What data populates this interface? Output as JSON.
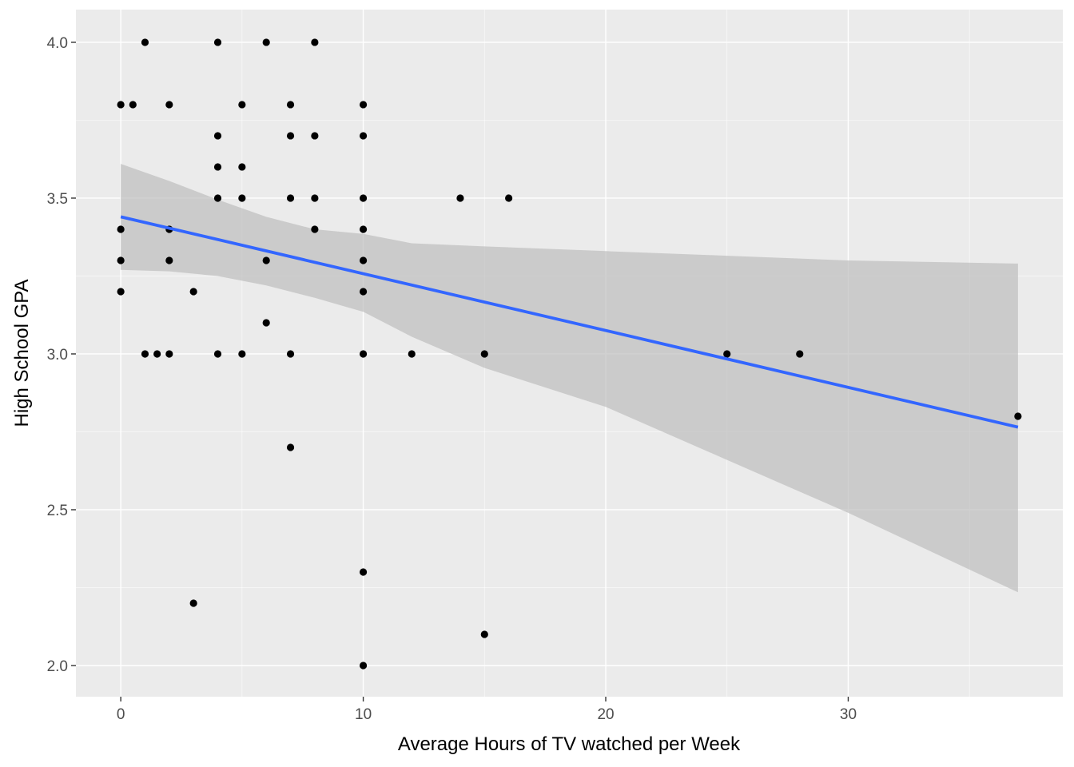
{
  "chart_data": {
    "type": "scatter",
    "xlabel": "Average Hours of TV watched per Week",
    "ylabel": "High School GPA",
    "xlim": [
      -1.85,
      38.85
    ],
    "ylim": [
      1.9,
      4.105
    ],
    "x_ticks": [
      0,
      10,
      20,
      30
    ],
    "x_tick_labels": [
      "0",
      "10",
      "20",
      "30"
    ],
    "y_ticks": [
      2.0,
      2.5,
      3.0,
      3.5,
      4.0
    ],
    "y_tick_labels": [
      "2.0",
      "2.5",
      "3.0",
      "3.5",
      "4.0"
    ],
    "grid": true,
    "legend": "none",
    "points": [
      {
        "x": 0,
        "y": 3.8
      },
      {
        "x": 0,
        "y": 3.4
      },
      {
        "x": 0,
        "y": 3.3
      },
      {
        "x": 0,
        "y": 3.2
      },
      {
        "x": 0.5,
        "y": 3.8
      },
      {
        "x": 1,
        "y": 4.0
      },
      {
        "x": 1,
        "y": 3.0
      },
      {
        "x": 1.5,
        "y": 3.0
      },
      {
        "x": 2,
        "y": 3.8
      },
      {
        "x": 2,
        "y": 3.4
      },
      {
        "x": 2,
        "y": 3.3
      },
      {
        "x": 2,
        "y": 3.0
      },
      {
        "x": 3,
        "y": 3.2
      },
      {
        "x": 3,
        "y": 2.2
      },
      {
        "x": 4,
        "y": 4.0
      },
      {
        "x": 4,
        "y": 3.7
      },
      {
        "x": 4,
        "y": 3.6
      },
      {
        "x": 4,
        "y": 3.5
      },
      {
        "x": 4,
        "y": 3.0
      },
      {
        "x": 5,
        "y": 3.8
      },
      {
        "x": 5,
        "y": 3.6
      },
      {
        "x": 5,
        "y": 3.5
      },
      {
        "x": 5,
        "y": 3.0
      },
      {
        "x": 6,
        "y": 4.0
      },
      {
        "x": 6,
        "y": 3.3
      },
      {
        "x": 6,
        "y": 3.1
      },
      {
        "x": 7,
        "y": 3.8
      },
      {
        "x": 7,
        "y": 3.7
      },
      {
        "x": 7,
        "y": 3.5
      },
      {
        "x": 7,
        "y": 3.0
      },
      {
        "x": 7,
        "y": 2.7
      },
      {
        "x": 8,
        "y": 4.0
      },
      {
        "x": 8,
        "y": 3.7
      },
      {
        "x": 8,
        "y": 3.5
      },
      {
        "x": 8,
        "y": 3.4
      },
      {
        "x": 10,
        "y": 3.8
      },
      {
        "x": 10,
        "y": 3.7
      },
      {
        "x": 10,
        "y": 3.5
      },
      {
        "x": 10,
        "y": 3.4
      },
      {
        "x": 10,
        "y": 3.3
      },
      {
        "x": 10,
        "y": 3.2
      },
      {
        "x": 10,
        "y": 3.0
      },
      {
        "x": 10,
        "y": 2.3
      },
      {
        "x": 10,
        "y": 2.0
      },
      {
        "x": 12,
        "y": 3.0
      },
      {
        "x": 14,
        "y": 3.5
      },
      {
        "x": 15,
        "y": 3.0
      },
      {
        "x": 15,
        "y": 2.1
      },
      {
        "x": 16,
        "y": 3.5
      },
      {
        "x": 25,
        "y": 3.0
      },
      {
        "x": 28,
        "y": 3.0
      },
      {
        "x": 37,
        "y": 2.8
      }
    ],
    "fit_line": {
      "x": [
        0,
        37
      ],
      "y": [
        3.44,
        2.765
      ]
    },
    "confidence_band": [
      {
        "x": 0,
        "lower": 3.27,
        "upper": 3.61
      },
      {
        "x": 2,
        "lower": 3.265,
        "upper": 3.555
      },
      {
        "x": 4,
        "lower": 3.25,
        "upper": 3.495
      },
      {
        "x": 6,
        "lower": 3.22,
        "upper": 3.44
      },
      {
        "x": 8,
        "lower": 3.18,
        "upper": 3.4
      },
      {
        "x": 10,
        "lower": 3.135,
        "upper": 3.385
      },
      {
        "x": 12,
        "lower": 3.055,
        "upper": 3.355
      },
      {
        "x": 15,
        "lower": 2.955,
        "upper": 3.345
      },
      {
        "x": 20,
        "lower": 2.83,
        "upper": 3.33
      },
      {
        "x": 25,
        "lower": 2.66,
        "upper": 3.315
      },
      {
        "x": 30,
        "lower": 2.49,
        "upper": 3.3
      },
      {
        "x": 37,
        "lower": 2.235,
        "upper": 3.29
      }
    ],
    "colors": {
      "panel": "#ebebeb",
      "grid_major": "#ffffff",
      "points": "#000000",
      "fit_line": "#3366ff",
      "band": "#bdbdbd"
    }
  }
}
